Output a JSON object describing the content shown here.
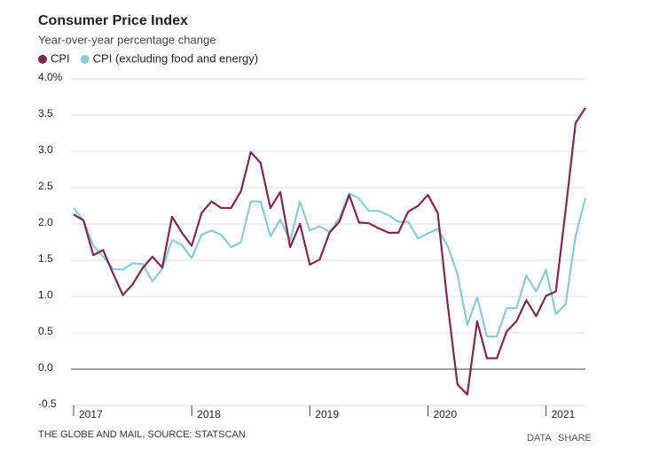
{
  "chart_data": {
    "type": "line",
    "title": "Consumer Price Index",
    "subtitle": "Year-over-year percentage change",
    "source": "THE GLOBE AND MAIL, SOURCE: STATSCAN",
    "actions": [
      "DATA",
      "SHARE"
    ],
    "categories": [
      "2017",
      null,
      null,
      null,
      null,
      null,
      null,
      null,
      null,
      null,
      null,
      null,
      "2018",
      null,
      null,
      null,
      null,
      null,
      null,
      null,
      null,
      null,
      null,
      null,
      "2019",
      null,
      null,
      null,
      null,
      null,
      null,
      null,
      null,
      null,
      null,
      null,
      "2020",
      null,
      null,
      null,
      null,
      null,
      null,
      null,
      null,
      null,
      null,
      null,
      "2021",
      null,
      null,
      null,
      null
    ],
    "series": [
      {
        "name": "CPI",
        "color": "#7b2a52",
        "values": [
          2.13,
          2.05,
          1.57,
          1.64,
          1.32,
          1.02,
          1.17,
          1.39,
          1.55,
          1.4,
          2.1,
          1.88,
          1.7,
          2.15,
          2.31,
          2.22,
          2.22,
          2.45,
          2.99,
          2.84,
          2.22,
          2.44,
          1.68,
          2.0,
          1.44,
          1.51,
          1.88,
          2.03,
          2.4,
          2.02,
          2.01,
          1.94,
          1.88,
          1.88,
          2.17,
          2.25,
          2.4,
          2.15,
          0.9,
          -0.21,
          -0.35,
          0.66,
          0.15,
          0.15,
          0.52,
          0.66,
          0.95,
          0.73,
          1.01,
          1.07,
          2.2,
          3.39,
          3.6
        ]
      },
      {
        "name": "CPI (excluding food and energy)",
        "color": "#8ecbd0",
        "values": [
          2.22,
          2.05,
          1.7,
          1.55,
          1.38,
          1.37,
          1.46,
          1.45,
          1.21,
          1.38,
          1.78,
          1.71,
          1.53,
          1.85,
          1.91,
          1.85,
          1.68,
          1.75,
          2.31,
          2.31,
          1.83,
          2.06,
          1.77,
          2.31,
          1.91,
          1.97,
          1.89,
          2.08,
          2.42,
          2.35,
          2.18,
          2.18,
          2.12,
          2.03,
          2.03,
          1.8,
          1.87,
          1.93,
          1.7,
          1.31,
          0.61,
          0.99,
          0.45,
          0.45,
          0.84,
          0.84,
          1.29,
          1.07,
          1.37,
          0.76,
          0.9,
          1.83,
          2.36
        ]
      }
    ],
    "ylim": [
      -0.5,
      4.0
    ],
    "yticks": [
      -0.5,
      {
        "value": 0,
        "label": "0.0"
      },
      0.5,
      {
        "value": 1,
        "label": "1.0"
      },
      1.5,
      {
        "value": 2,
        "label": "2.0"
      },
      2.5,
      {
        "value": 3,
        "label": "3.0"
      },
      3.5,
      {
        "value": 4,
        "label": "4.0%"
      }
    ],
    "grid": true
  }
}
